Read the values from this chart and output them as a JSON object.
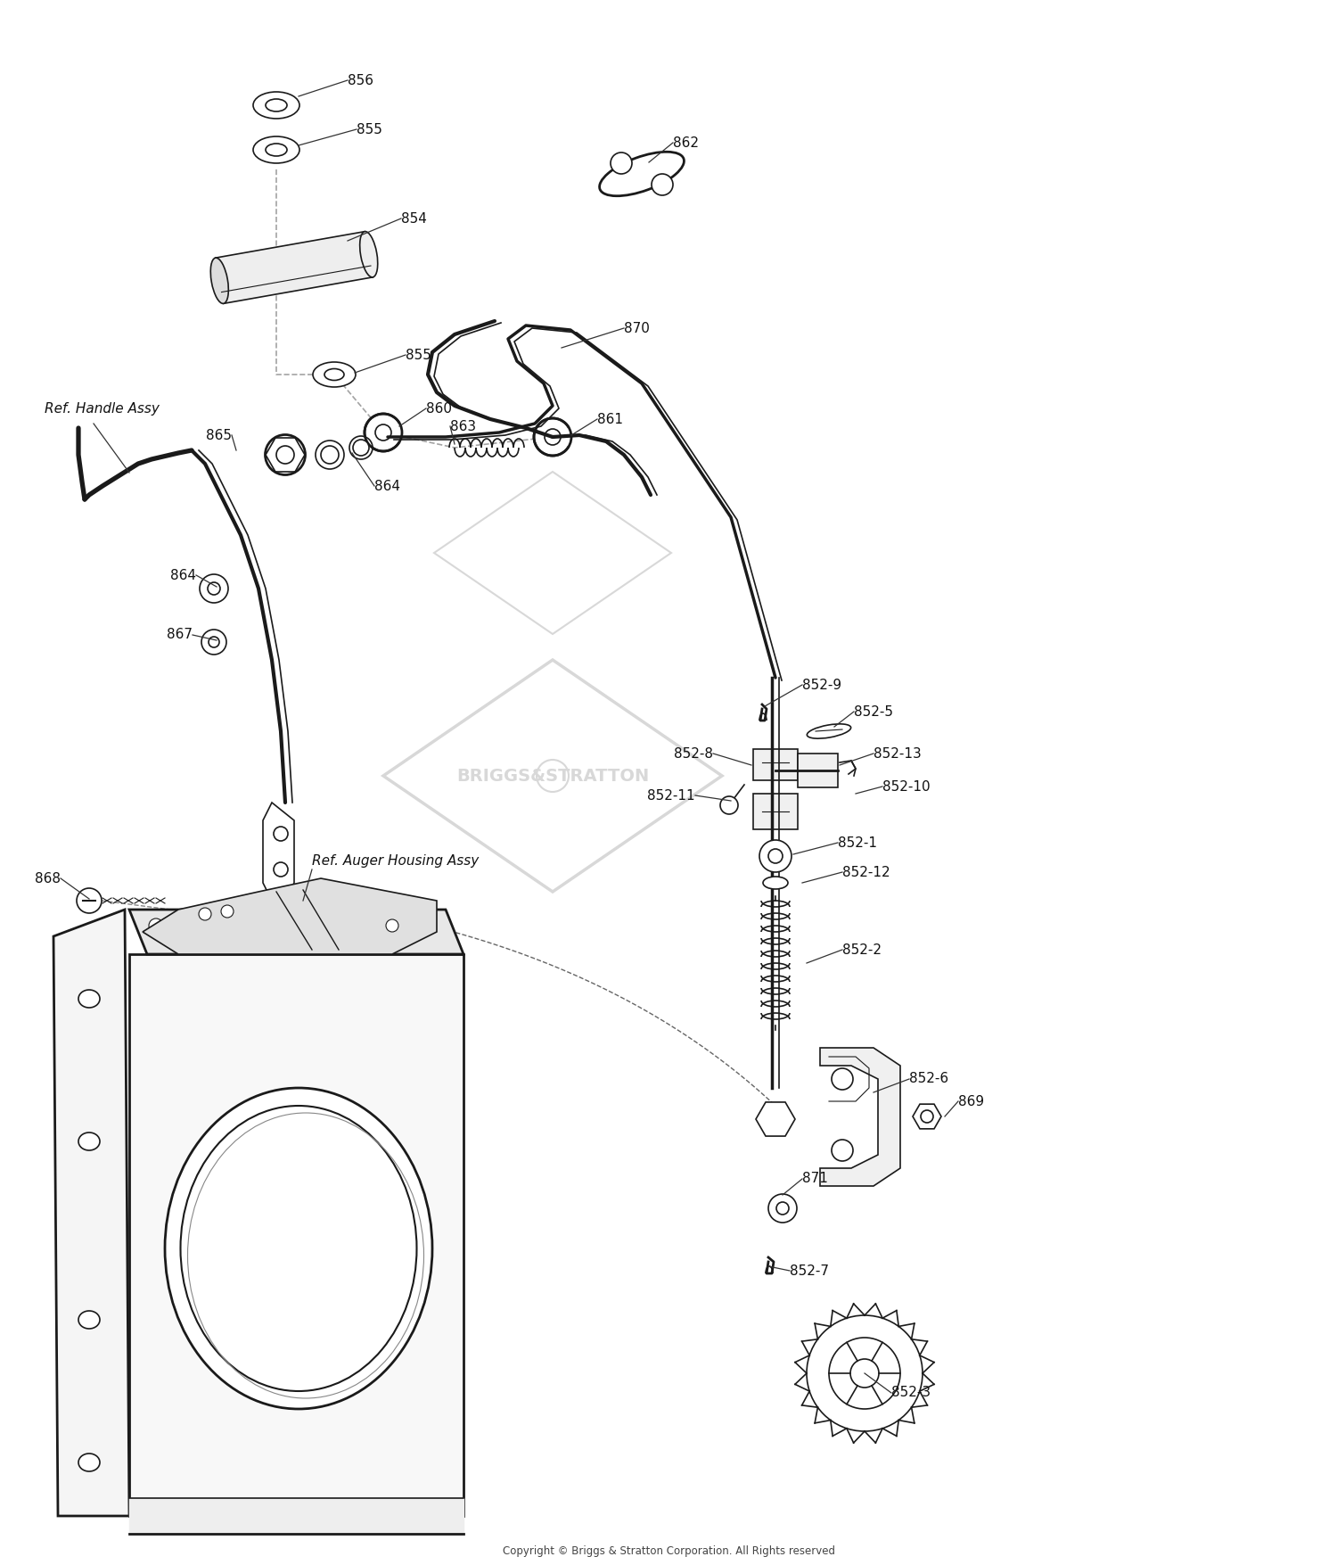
{
  "bg_color": "#ffffff",
  "line_color": "#1a1a1a",
  "label_color": "#111111",
  "watermark_color": "#d8d8d8",
  "copyright": "Copyright © Briggs & Stratton Corporation. All Rights reserved",
  "figsize": [
    15.0,
    17.55
  ],
  "dpi": 100
}
